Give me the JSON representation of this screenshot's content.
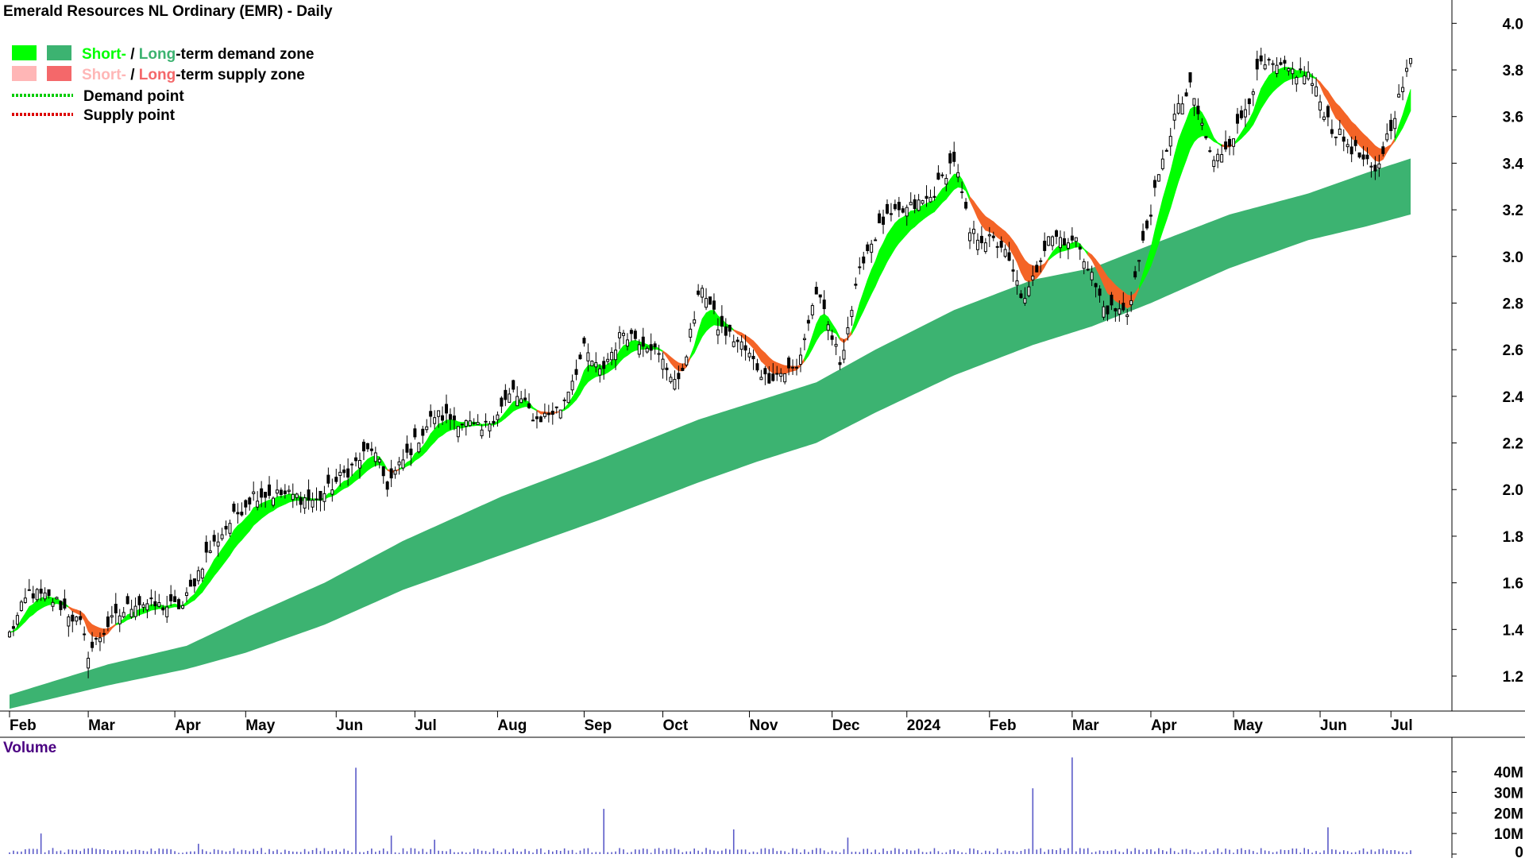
{
  "chart_data": {
    "type": "candlestick",
    "title": "Emerald Resources NL Ordinary (EMR) - Daily",
    "legend": [
      {
        "label_a": "Short-",
        "sep": " / ",
        "label_b": "Long",
        "suffix": "-term demand zone",
        "color_a": "#00ff00",
        "color_b": "#3cb371",
        "text_color": "#000000"
      },
      {
        "label_a": "Short-",
        "sep": " / ",
        "label_b": "Long",
        "suffix": "-term supply zone",
        "color_a": "#ffb6b6",
        "color_b": "#f4686a",
        "text_color": "#000000"
      },
      {
        "label": "Demand point",
        "color": "#00cc00",
        "style": "dotted"
      },
      {
        "label": "Supply point",
        "color": "#dd0000",
        "style": "dotted"
      }
    ],
    "legend_placement": "top-left",
    "price_axis": {
      "position": "right",
      "ylim": [
        1.05,
        4.1
      ],
      "ticks": [
        "1.2",
        "1.4",
        "1.6",
        "1.8",
        "2.0",
        "2.2",
        "2.4",
        "2.6",
        "2.8",
        "3.0",
        "3.2",
        "3.4",
        "3.6",
        "3.8",
        "4.0"
      ]
    },
    "x_axis": {
      "ticks": [
        {
          "label": "Feb",
          "t": 0
        },
        {
          "label": "Mar",
          "t": 20
        },
        {
          "label": "Apr",
          "t": 42
        },
        {
          "label": "May",
          "t": 60
        },
        {
          "label": "Jun",
          "t": 83
        },
        {
          "label": "Jul",
          "t": 103
        },
        {
          "label": "Aug",
          "t": 124
        },
        {
          "label": "Sep",
          "t": 146
        },
        {
          "label": "Oct",
          "t": 166
        },
        {
          "label": "Nov",
          "t": 188
        },
        {
          "label": "Dec",
          "t": 209
        },
        {
          "label": "2024",
          "t": 228
        },
        {
          "label": "Feb",
          "t": 249
        },
        {
          "label": "Mar",
          "t": 270
        },
        {
          "label": "Apr",
          "t": 290
        },
        {
          "label": "May",
          "t": 311
        },
        {
          "label": "Jun",
          "t": 333
        },
        {
          "label": "Jul",
          "t": 351
        }
      ],
      "num_days": 357
    },
    "price_key_points": [
      [
        0,
        1.38
      ],
      [
        5,
        1.56
      ],
      [
        12,
        1.52
      ],
      [
        18,
        1.42
      ],
      [
        20,
        1.3
      ],
      [
        25,
        1.42
      ],
      [
        32,
        1.52
      ],
      [
        38,
        1.5
      ],
      [
        44,
        1.5
      ],
      [
        50,
        1.72
      ],
      [
        56,
        1.86
      ],
      [
        62,
        1.98
      ],
      [
        70,
        1.98
      ],
      [
        78,
        1.95
      ],
      [
        84,
        2.05
      ],
      [
        92,
        2.18
      ],
      [
        96,
        2.02
      ],
      [
        103,
        2.2
      ],
      [
        108,
        2.32
      ],
      [
        114,
        2.3
      ],
      [
        120,
        2.25
      ],
      [
        128,
        2.42
      ],
      [
        134,
        2.3
      ],
      [
        140,
        2.35
      ],
      [
        146,
        2.6
      ],
      [
        150,
        2.5
      ],
      [
        156,
        2.68
      ],
      [
        163,
        2.62
      ],
      [
        170,
        2.45
      ],
      [
        176,
        2.88
      ],
      [
        180,
        2.7
      ],
      [
        186,
        2.62
      ],
      [
        192,
        2.48
      ],
      [
        200,
        2.52
      ],
      [
        205,
        2.85
      ],
      [
        211,
        2.55
      ],
      [
        217,
        3.0
      ],
      [
        222,
        3.15
      ],
      [
        228,
        3.2
      ],
      [
        234,
        3.25
      ],
      [
        240,
        3.42
      ],
      [
        244,
        3.1
      ],
      [
        252,
        3.05
      ],
      [
        258,
        2.8
      ],
      [
        264,
        3.1
      ],
      [
        272,
        3.05
      ],
      [
        278,
        2.78
      ],
      [
        284,
        2.76
      ],
      [
        290,
        3.2
      ],
      [
        296,
        3.6
      ],
      [
        300,
        3.72
      ],
      [
        306,
        3.4
      ],
      [
        312,
        3.55
      ],
      [
        318,
        3.82
      ],
      [
        324,
        3.8
      ],
      [
        330,
        3.78
      ],
      [
        336,
        3.55
      ],
      [
        342,
        3.45
      ],
      [
        347,
        3.35
      ],
      [
        352,
        3.62
      ],
      [
        356,
        3.84
      ]
    ],
    "ema_short": {
      "name": "Short-term demand zone",
      "period_fast": 6,
      "period_slow": 13
    },
    "ema_long": {
      "name": "Long-term demand zone",
      "upper_key_points": [
        [
          0,
          1.12
        ],
        [
          25,
          1.25
        ],
        [
          45,
          1.33
        ],
        [
          60,
          1.45
        ],
        [
          80,
          1.6
        ],
        [
          100,
          1.78
        ],
        [
          125,
          1.97
        ],
        [
          150,
          2.13
        ],
        [
          175,
          2.3
        ],
        [
          190,
          2.38
        ],
        [
          205,
          2.46
        ],
        [
          220,
          2.6
        ],
        [
          240,
          2.77
        ],
        [
          260,
          2.9
        ],
        [
          275,
          2.95
        ],
        [
          290,
          3.05
        ],
        [
          310,
          3.18
        ],
        [
          330,
          3.27
        ],
        [
          345,
          3.36
        ],
        [
          356,
          3.42
        ]
      ],
      "lower_key_points": [
        [
          0,
          1.06
        ],
        [
          25,
          1.16
        ],
        [
          45,
          1.23
        ],
        [
          60,
          1.3
        ],
        [
          80,
          1.42
        ],
        [
          100,
          1.57
        ],
        [
          125,
          1.72
        ],
        [
          150,
          1.87
        ],
        [
          175,
          2.03
        ],
        [
          190,
          2.12
        ],
        [
          205,
          2.2
        ],
        [
          220,
          2.33
        ],
        [
          240,
          2.49
        ],
        [
          260,
          2.62
        ],
        [
          275,
          2.7
        ],
        [
          290,
          2.8
        ],
        [
          310,
          2.95
        ],
        [
          330,
          3.07
        ],
        [
          345,
          3.13
        ],
        [
          356,
          3.18
        ]
      ]
    },
    "volume": {
      "title": "Volume",
      "ticks": [
        "0",
        "10M",
        "20M",
        "30M",
        "40M"
      ],
      "ylim": [
        0,
        46000000
      ],
      "base": 1500000,
      "spikes": [
        [
          8,
          10000000
        ],
        [
          48,
          5000000
        ],
        [
          88,
          42000000
        ],
        [
          97,
          9000000
        ],
        [
          108,
          7000000
        ],
        [
          151,
          22000000
        ],
        [
          184,
          12000000
        ],
        [
          213,
          8000000
        ],
        [
          260,
          32000000
        ],
        [
          270,
          47000000
        ],
        [
          335,
          13000000
        ]
      ]
    },
    "colors": {
      "short_demand": "#00ff00",
      "long_demand": "#3cb371",
      "short_supply_light": "#ffb6b6",
      "short_supply_dark": "#f46427",
      "volume_bar": "#5a5ac8",
      "candle": "#000000",
      "axis": "#000000",
      "volume_title": "#4b0082"
    }
  }
}
